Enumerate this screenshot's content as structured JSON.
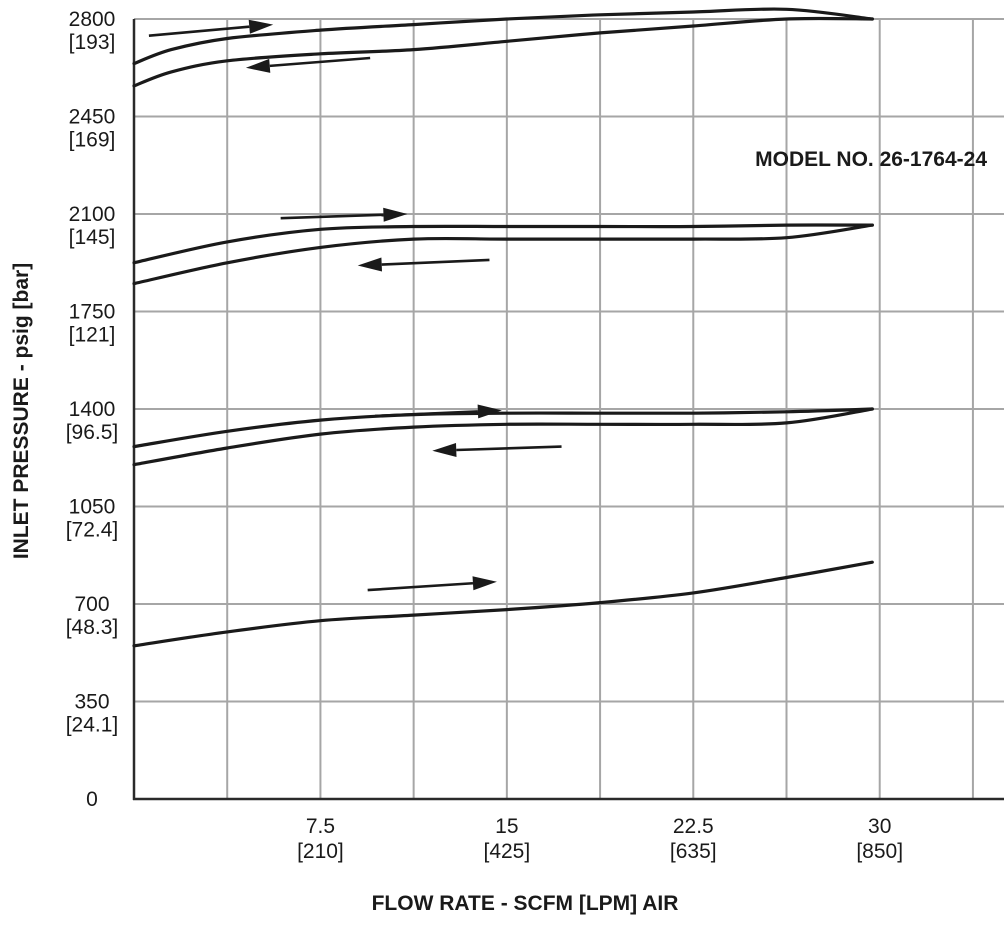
{
  "chart_data": {
    "type": "line",
    "xlabel": "FLOW RATE - SCFM [LPM] AIR",
    "ylabel": "INLET PRESSURE - psig [bar]",
    "xlim": [
      0,
      35
    ],
    "ylim": [
      0,
      2800
    ],
    "grid": true,
    "x_gridlines": [
      3.75,
      7.5,
      11.25,
      15,
      18.75,
      22.5,
      26.25,
      30,
      33.75
    ],
    "y_gridlines": [
      350,
      700,
      1050,
      1400,
      1750,
      2100,
      2450,
      2800
    ],
    "x_ticks": [
      {
        "value": 7.5,
        "label": "7.5",
        "sublabel": "[210]"
      },
      {
        "value": 15,
        "label": "15",
        "sublabel": "[425]"
      },
      {
        "value": 22.5,
        "label": "22.5",
        "sublabel": "[635]"
      },
      {
        "value": 30,
        "label": "30",
        "sublabel": "[850]"
      }
    ],
    "y_ticks": [
      {
        "value": 0,
        "label": "0",
        "sublabel": ""
      },
      {
        "value": 350,
        "label": "350",
        "sublabel": "[24.1]"
      },
      {
        "value": 700,
        "label": "700",
        "sublabel": "[48.3]"
      },
      {
        "value": 1050,
        "label": "1050",
        "sublabel": "[72.4]"
      },
      {
        "value": 1400,
        "label": "1400",
        "sublabel": "[96.5]"
      },
      {
        "value": 1750,
        "label": "1750",
        "sublabel": "[121]"
      },
      {
        "value": 2100,
        "label": "2100",
        "sublabel": "[145]"
      },
      {
        "value": 2450,
        "label": "2450",
        "sublabel": "[169]"
      },
      {
        "value": 2800,
        "label": "2800",
        "sublabel": "[193]"
      }
    ],
    "annotation": "MODEL NO. 26-1764-24",
    "series": [
      {
        "x": [
          0,
          1.5,
          3.75,
          7.5,
          11.25,
          15,
          18.75,
          22.5,
          26.25,
          29.7
        ],
        "y": [
          2640,
          2690,
          2730,
          2760,
          2780,
          2800,
          2815,
          2825,
          2835,
          2800
        ]
      },
      {
        "x": [
          0,
          1.5,
          3.75,
          7.5,
          11.25,
          15,
          18.75,
          22.5,
          26.25,
          29.7
        ],
        "y": [
          2560,
          2610,
          2650,
          2675,
          2690,
          2720,
          2750,
          2775,
          2800,
          2800
        ]
      },
      {
        "x": [
          0,
          3.75,
          7.5,
          11.25,
          15,
          18.75,
          22.5,
          26.25,
          29.7
        ],
        "y": [
          1925,
          2000,
          2045,
          2055,
          2055,
          2055,
          2055,
          2060,
          2060
        ]
      },
      {
        "x": [
          0,
          3.75,
          7.5,
          11.25,
          15,
          18.75,
          22.5,
          26.25,
          29.7
        ],
        "y": [
          1850,
          1925,
          1980,
          2010,
          2010,
          2010,
          2010,
          2015,
          2060
        ]
      },
      {
        "x": [
          0,
          3.75,
          7.5,
          11.25,
          15,
          18.75,
          22.5,
          26.25,
          29.7
        ],
        "y": [
          1265,
          1320,
          1360,
          1380,
          1385,
          1385,
          1385,
          1390,
          1400
        ]
      },
      {
        "x": [
          0,
          3.75,
          7.5,
          11.25,
          15,
          18.75,
          22.5,
          26.25,
          29.7
        ],
        "y": [
          1200,
          1260,
          1310,
          1335,
          1345,
          1345,
          1345,
          1350,
          1400
        ]
      },
      {
        "x": [
          0,
          3.75,
          7.5,
          11.25,
          15,
          18.75,
          22.5,
          26.25,
          29.7
        ],
        "y": [
          550,
          600,
          640,
          660,
          680,
          705,
          740,
          795,
          850
        ]
      }
    ],
    "direction_arrows": [
      {
        "from": [
          0.6,
          2740
        ],
        "to": [
          5.6,
          2780
        ]
      },
      {
        "from": [
          9.5,
          2660
        ],
        "to": [
          4.5,
          2625
        ]
      },
      {
        "from": [
          5.9,
          2085
        ],
        "to": [
          11.0,
          2100
        ]
      },
      {
        "from": [
          14.3,
          1935
        ],
        "to": [
          9.0,
          1915
        ]
      },
      {
        "from": [
          9.7,
          1375
        ],
        "to": [
          14.8,
          1395
        ]
      },
      {
        "from": [
          17.2,
          1265
        ],
        "to": [
          12.0,
          1250
        ]
      },
      {
        "from": [
          9.4,
          750
        ],
        "to": [
          14.6,
          780
        ]
      }
    ]
  }
}
